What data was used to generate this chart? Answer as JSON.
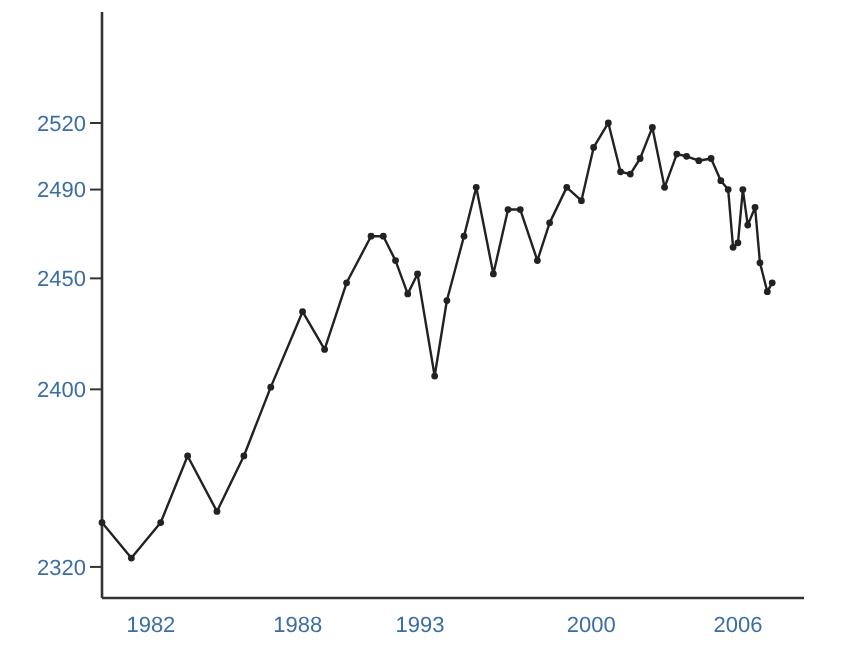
{
  "chart_data": {
    "type": "line",
    "marker": "circle",
    "grid": false,
    "x": [
      1980.0,
      1981.2,
      1982.4,
      1983.5,
      1984.7,
      1985.8,
      1986.9,
      1988.2,
      1989.1,
      1990.0,
      1991.0,
      1991.5,
      1992.0,
      1992.5,
      1992.9,
      1993.6,
      1994.1,
      1994.8,
      1995.3,
      1996.0,
      1996.6,
      1997.1,
      1997.8,
      1998.3,
      1999.0,
      1999.6,
      2000.1,
      2000.7,
      2001.2,
      2001.6,
      2002.0,
      2002.5,
      2003.0,
      2003.5,
      2003.9,
      2004.4,
      2004.9,
      2005.3,
      2005.6,
      2005.8,
      2006.0,
      2006.2,
      2006.4,
      2006.7,
      2006.9,
      2007.2,
      2007.4
    ],
    "series": [
      {
        "color": "#222222",
        "values": [
          2340,
          2324,
          2340,
          2370,
          2345,
          2370,
          2401,
          2435,
          2418,
          2448,
          2469,
          2469,
          2458,
          2443,
          2452,
          2406,
          2440,
          2469,
          2491,
          2452,
          2481,
          2481,
          2458,
          2475,
          2491,
          2485,
          2509,
          2520,
          2498,
          2497,
          2504,
          2518,
          2491,
          2506,
          2505,
          2503,
          2504,
          2494,
          2490,
          2464,
          2466,
          2490,
          2474,
          2482,
          2457,
          2444,
          2448
        ]
      }
    ],
    "xlim": [
      1980,
      2008.7
    ],
    "xticks": [
      1982,
      1988,
      1993,
      2000,
      2006
    ],
    "ylim": [
      2306,
      2570
    ],
    "yticks": [
      2320,
      2400,
      2450,
      2490,
      2520
    ]
  }
}
